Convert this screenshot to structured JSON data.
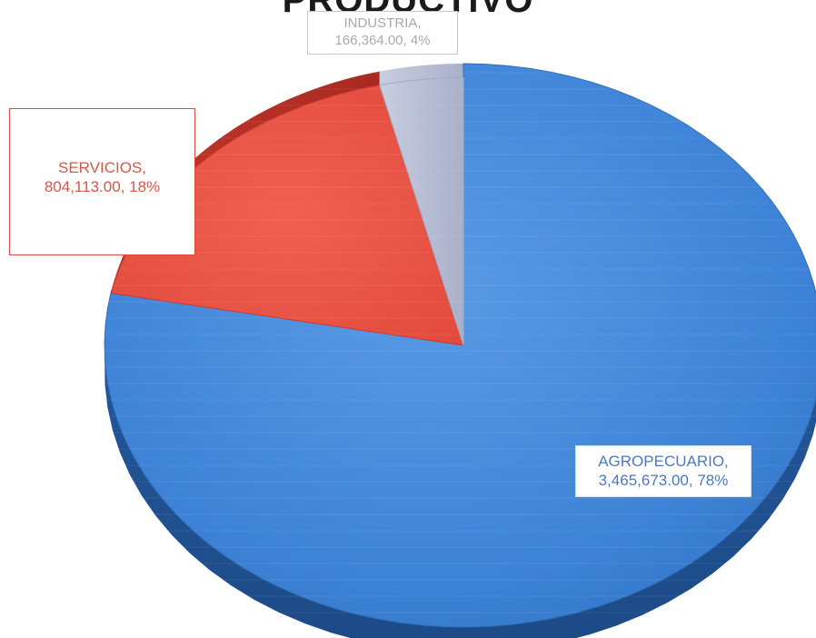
{
  "chart_data": {
    "type": "pie",
    "title": "PRODUCTIVO",
    "slices": [
      {
        "name": "AGROPECUARIO",
        "value": 3465673.0,
        "value_label": "3,465,673.00",
        "percent": 78,
        "percent_label": "78%",
        "color": "#3d82d6"
      },
      {
        "name": "SERVICIOS",
        "value": 804113.0,
        "value_label": "804,113.00",
        "percent": 18,
        "percent_label": "18%",
        "color": "#ea5545"
      },
      {
        "name": "INDUSTRIA",
        "value": 166364.0,
        "value_label": "166,364.00",
        "percent": 4,
        "percent_label": "4%",
        "color": "#bcc2d6"
      }
    ],
    "labels": {
      "agro": {
        "line1": "AGROPECUARIO,",
        "line2": "3,465,673.00, 78%"
      },
      "serv": {
        "line1": "SERVICIOS,",
        "line2": "804,113.00, 18%"
      },
      "ind": {
        "line1": "INDUSTRIA,",
        "line2": "166,364.00, 4%"
      }
    },
    "style": "3d-exploded"
  }
}
